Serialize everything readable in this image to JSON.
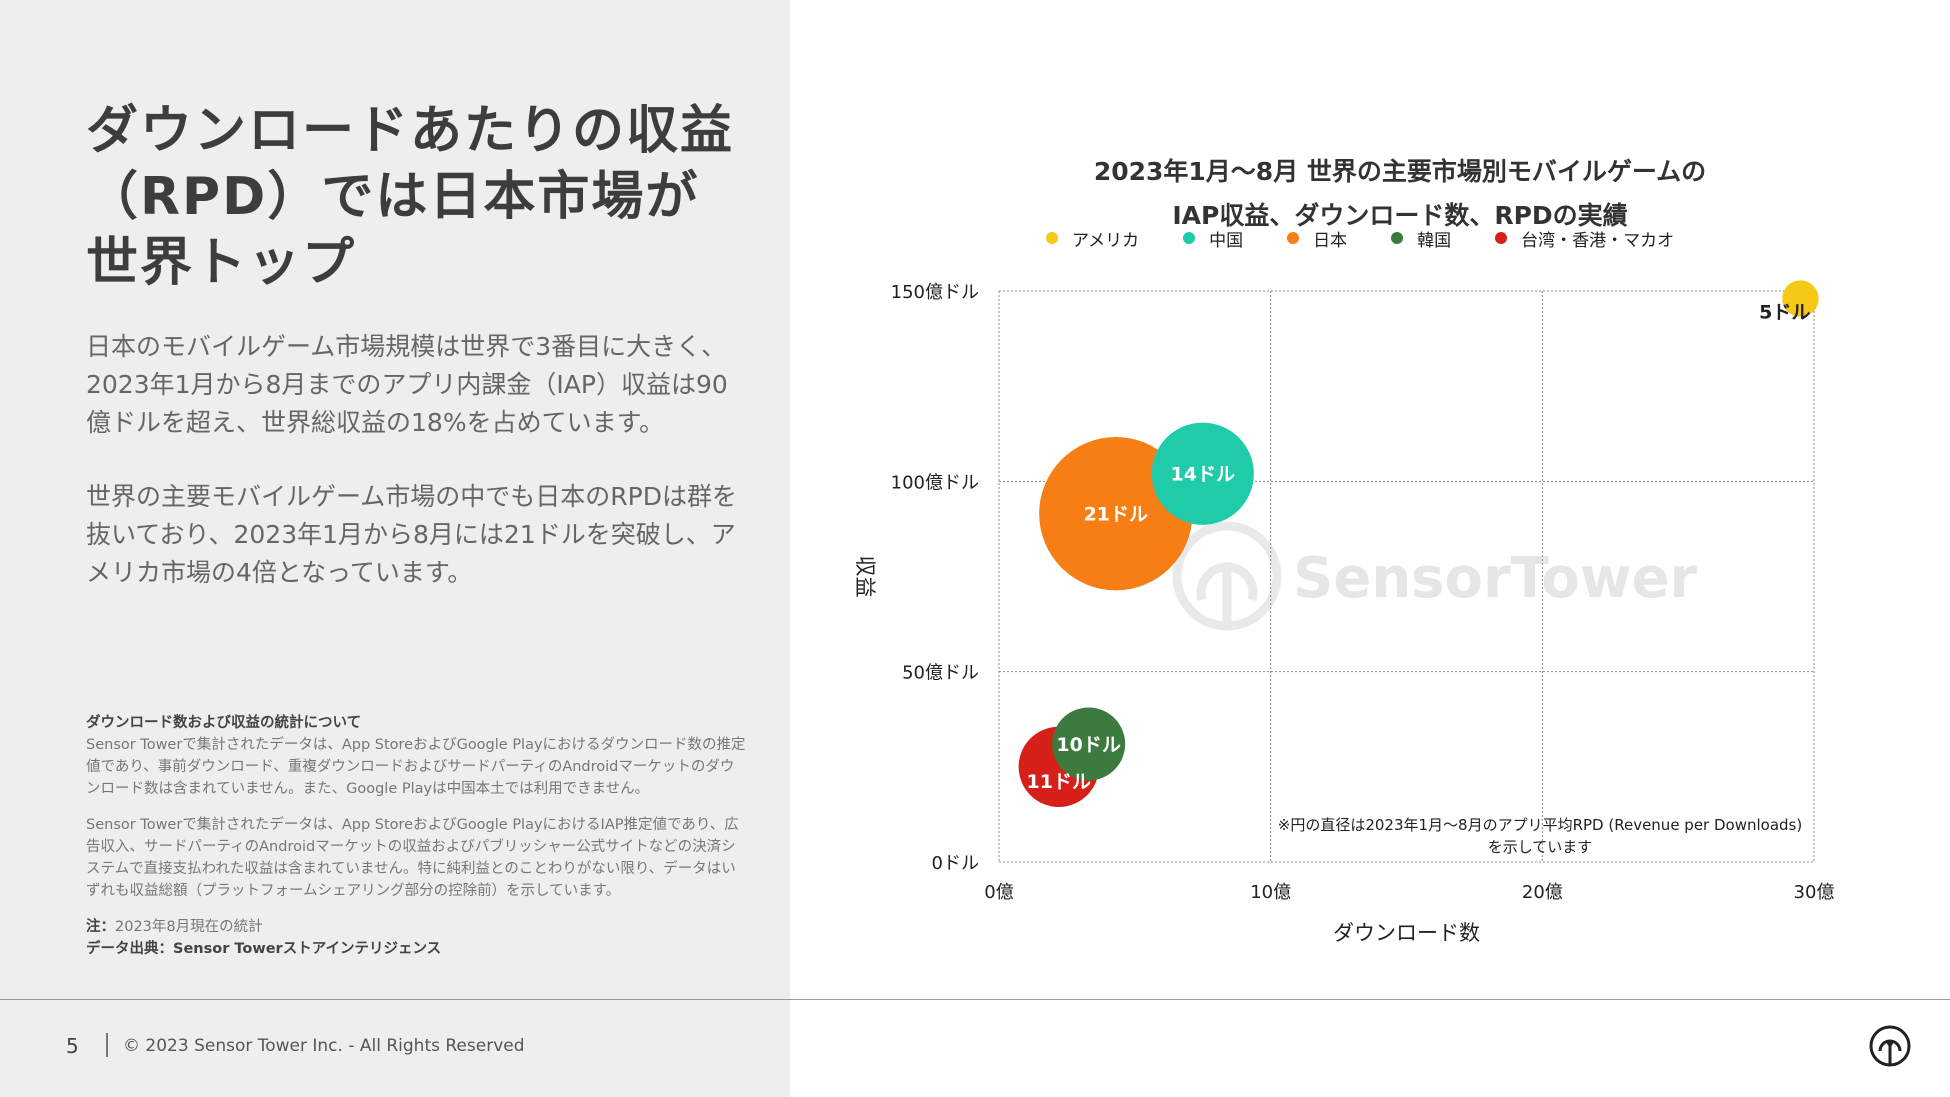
{
  "left": {
    "headline": "ダウンロードあたりの収益（RPD）では日本市場が世界トップ",
    "paragraph1": "日本のモバイルゲーム市場規模は世界で3番目に大きく、2023年1月から8月までのアプリ内課金（IAP）収益は90億ドルを超え、世界総収益の18%を占めています。",
    "paragraph2": "世界の主要モバイルゲーム市場の中でも日本のRPDは群を抜いており、2023年1月から8月には21ドルを突破し、アメリカ市場の4倍となっています。",
    "notes": {
      "title": "ダウンロード数および収益の統計について",
      "text1": "Sensor Towerで集計されたデータは、App StoreおよびGoogle Playにおけるダウンロード数の推定値であり、事前ダウンロード、重複ダウンロードおよびサードパーティのAndroidマーケットのダウンロード数は含まれていません。また、Google Playは中国本土では利用できません。",
      "text2": "Sensor Towerで集計されたデータは、App StoreおよびGoogle PlayにおけるIAP推定値であり、広告収入、サードパーティのAndroidマーケットの収益およびパブリッシャー公式サイトなどの決済システムで直接支払われた収益は含まれていません。特に純利益とのことわりがない限り、データはいずれも収益総額（プラットフォームシェアリング部分の控除前）を示しています。",
      "note_label": "注：",
      "note_text": "2023年8月現在の統計",
      "source": "データ出典：Sensor Towerストアインテリジェンス"
    }
  },
  "footer": {
    "page": "5",
    "copyright": "© 2023 Sensor Tower Inc. - All Rights Reserved"
  },
  "colors": {
    "usa": "#f5c918",
    "china": "#1fcba8",
    "japan": "#f77e15",
    "korea": "#3c7a3f",
    "taiwan": "#d8201a"
  },
  "chart_data": {
    "type": "bubble",
    "title_line1": "2023年1月〜8月 世界の主要市場別モバイルゲームの",
    "title_line2": "IAP収益、ダウンロード数、RPDの実績",
    "xlabel": "ダウンロード数",
    "ylabel": "収益",
    "xlim": [
      0,
      30
    ],
    "ylim": [
      0,
      150
    ],
    "x_ticks": [
      0,
      10,
      20,
      30
    ],
    "y_ticks": [
      0,
      50,
      100,
      150
    ],
    "x_tick_labels": [
      "0億",
      "10億",
      "20億",
      "30億"
    ],
    "y_tick_labels": [
      "0ドル",
      "50億ドル",
      "100億ドル",
      "150億ドル"
    ],
    "watermark": "SensorTower",
    "footnote_line1": "※円の直径は2023年1月〜8月のアプリ平均RPD (Revenue per Downloads)",
    "footnote_line2": "を示しています",
    "series": [
      {
        "name": "アメリカ",
        "color_key": "usa",
        "x": 29.5,
        "y": 148,
        "rpd": 5,
        "label": "5ドル"
      },
      {
        "name": "中国",
        "color_key": "china",
        "x": 7.5,
        "y": 102,
        "rpd": 14,
        "label": "14ドル"
      },
      {
        "name": "日本",
        "color_key": "japan",
        "x": 4.3,
        "y": 91.5,
        "rpd": 21,
        "label": "21ドル"
      },
      {
        "name": "韓国",
        "color_key": "korea",
        "x": 3.3,
        "y": 31,
        "rpd": 10,
        "label": "10ドル"
      },
      {
        "name": "台湾・香港・マカオ",
        "color_key": "taiwan",
        "x": 2.2,
        "y": 25,
        "rpd": 11,
        "label": "11ドル"
      }
    ]
  }
}
